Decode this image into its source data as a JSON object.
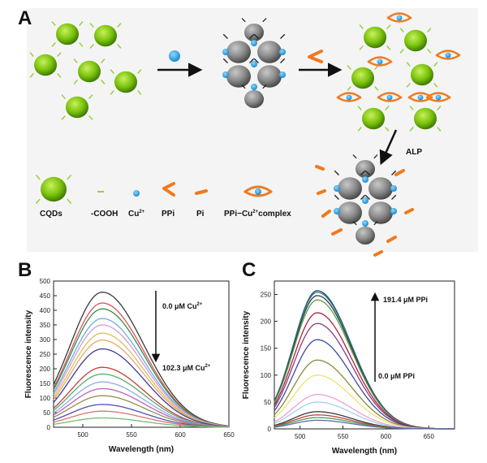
{
  "panels": {
    "a": "A",
    "b": "B",
    "c": "C"
  },
  "scheme": {
    "arrow_label": "ALP",
    "legend": [
      {
        "key": "cqd",
        "text": "CQDs"
      },
      {
        "key": "cooh",
        "text": "-COOH"
      },
      {
        "key": "cu",
        "text": "Cu",
        "sup": "2+"
      },
      {
        "key": "ppi",
        "text": "PPi"
      },
      {
        "key": "pi",
        "text": "Pi"
      },
      {
        "key": "complex",
        "text": "PPi−Cu",
        "sup": "2+",
        "tail": "complex"
      }
    ],
    "colors": {
      "cqd": "#7ac20a",
      "cu": "#1ea8e0",
      "ppi": "#f07a1e",
      "aggregate": "#8a8a8a"
    }
  },
  "chart_data": [
    {
      "panel": "B",
      "type": "line",
      "xlabel": "Wavelength (nm)",
      "ylabel": "Fluorescence intensity",
      "xlim": [
        470,
        650
      ],
      "ylim": [
        0,
        500
      ],
      "xticks": [
        500,
        550,
        600,
        650
      ],
      "yticks": [
        0,
        50,
        100,
        150,
        200,
        250,
        300,
        350,
        400,
        450,
        500
      ],
      "peak_x": 520,
      "annotation_top": {
        "text": "0.0 μM Cu",
        "sup": "2+"
      },
      "annotation_bottom": {
        "text": "102.3 μM Cu",
        "sup": "2+"
      },
      "grid": false,
      "series": [
        {
          "peak": 462,
          "color": "#3a3a3a"
        },
        {
          "peak": 425,
          "color": "#e0505a"
        },
        {
          "peak": 405,
          "color": "#3a8a4a"
        },
        {
          "peak": 372,
          "color": "#6aaee0"
        },
        {
          "peak": 350,
          "color": "#d99ad0"
        },
        {
          "peak": 322,
          "color": "#d8c060"
        },
        {
          "peak": 298,
          "color": "#e8a868"
        },
        {
          "peak": 268,
          "color": "#3a3a9a"
        },
        {
          "peak": 205,
          "color": "#c04040"
        },
        {
          "peak": 182,
          "color": "#5aaa6a"
        },
        {
          "peak": 155,
          "color": "#8ab0e0"
        },
        {
          "peak": 132,
          "color": "#c060c0"
        },
        {
          "peak": 108,
          "color": "#909050"
        },
        {
          "peak": 78,
          "color": "#5050b0"
        },
        {
          "peak": 55,
          "color": "#e07070"
        },
        {
          "peak": 32,
          "color": "#70c070"
        }
      ]
    },
    {
      "panel": "C",
      "type": "line",
      "xlabel": "Wavelength (nm)",
      "ylabel": "Fluorescence intensity",
      "xlim": [
        470,
        680
      ],
      "ylim": [
        0,
        275
      ],
      "xticks": [
        500,
        550,
        600,
        650
      ],
      "yticks": [
        0,
        50,
        100,
        150,
        200,
        250
      ],
      "peak_x": 520,
      "annotation_top": {
        "text": "191.4 μM PPi"
      },
      "annotation_bottom": {
        "text": "0.0 μM PPi"
      },
      "grid": false,
      "series": [
        {
          "peak": 257,
          "color": "#1a3a7a"
        },
        {
          "peak": 254,
          "color": "#2a8a8a"
        },
        {
          "peak": 248,
          "color": "#3a3a3a"
        },
        {
          "peak": 240,
          "color": "#5aa04a"
        },
        {
          "peak": 216,
          "color": "#b02040"
        },
        {
          "peak": 196,
          "color": "#8a3a8a"
        },
        {
          "peak": 166,
          "color": "#3a4a9a"
        },
        {
          "peak": 128,
          "color": "#8a8a3a"
        },
        {
          "peak": 100,
          "color": "#f0e070"
        },
        {
          "peak": 64,
          "color": "#f0a0d0"
        },
        {
          "peak": 50,
          "color": "#a0d0f0"
        },
        {
          "peak": 32,
          "color": "#3a3a3a"
        },
        {
          "peak": 26,
          "color": "#c04040"
        },
        {
          "peak": 21,
          "color": "#4aa04a"
        },
        {
          "peak": 16,
          "color": "#5a6ab0"
        }
      ]
    }
  ]
}
